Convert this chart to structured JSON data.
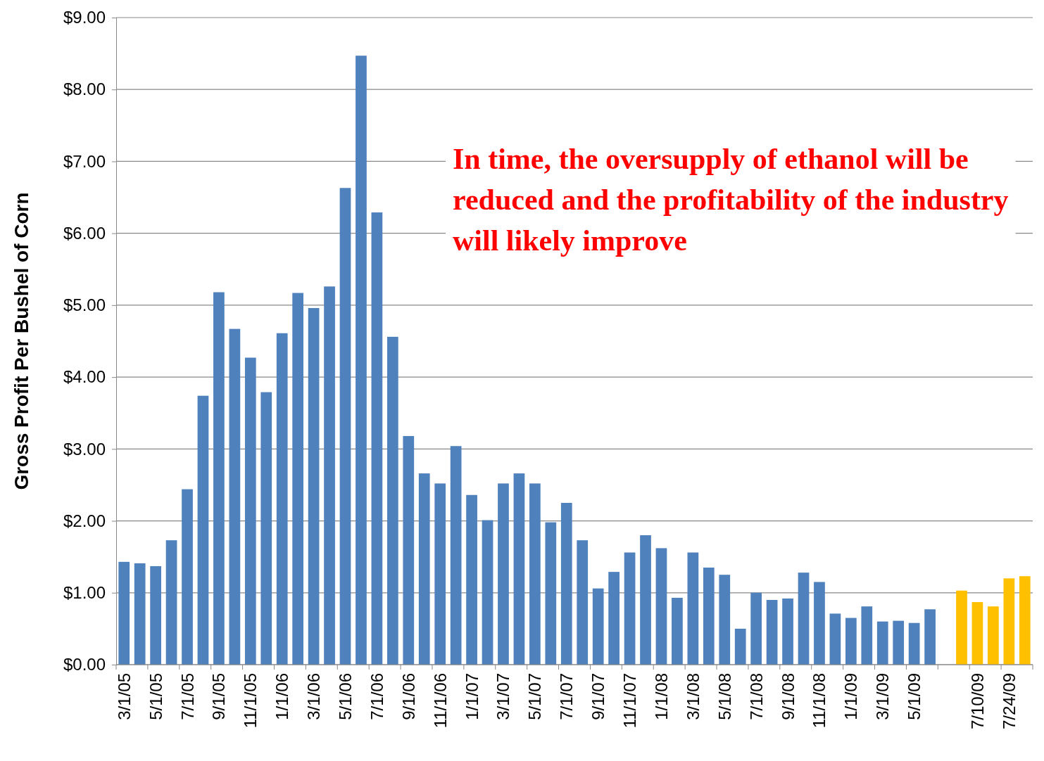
{
  "chart_data": {
    "type": "bar",
    "ylabel": "Gross Profit Per Bushel of Corn",
    "categories": [
      "3/1/05",
      null,
      "5/1/05",
      null,
      "7/1/05",
      null,
      "9/1/05",
      null,
      "11/1/05",
      null,
      "1/1/06",
      null,
      "3/1/06",
      null,
      "5/1/06",
      null,
      "7/1/06",
      null,
      "9/1/06",
      null,
      "11/1/06",
      null,
      "1/1/07",
      null,
      "3/1/07",
      null,
      "5/1/07",
      null,
      "7/1/07",
      null,
      "9/1/07",
      null,
      "11/1/07",
      null,
      "1/1/08",
      null,
      "3/1/08",
      null,
      "5/1/08",
      null,
      "7/1/08",
      null,
      "9/1/08",
      null,
      "11/1/08",
      null,
      "1/1/09",
      null,
      "3/1/09",
      null,
      "5/1/09",
      null,
      null,
      null,
      "7/10/09",
      null,
      "7/24/09",
      null
    ],
    "values": [
      1.43,
      1.41,
      1.37,
      1.73,
      2.44,
      3.74,
      5.18,
      4.67,
      4.27,
      3.79,
      4.61,
      5.17,
      4.96,
      5.26,
      6.63,
      8.47,
      6.29,
      4.56,
      3.18,
      2.66,
      2.52,
      3.04,
      2.36,
      2.01,
      2.52,
      2.66,
      2.52,
      1.98,
      2.25,
      1.73,
      1.06,
      1.29,
      1.56,
      1.8,
      1.62,
      0.93,
      1.56,
      1.35,
      1.25,
      0.5,
      1.0,
      0.9,
      0.92,
      1.28,
      1.15,
      0.71,
      0.65,
      0.81,
      0.6,
      0.61,
      0.58,
      0.77,
      null,
      1.03,
      0.87,
      0.81,
      1.2,
      1.23
    ],
    "colors": [
      "#4f81bd",
      "#4f81bd",
      "#4f81bd",
      "#4f81bd",
      "#4f81bd",
      "#4f81bd",
      "#4f81bd",
      "#4f81bd",
      "#4f81bd",
      "#4f81bd",
      "#4f81bd",
      "#4f81bd",
      "#4f81bd",
      "#4f81bd",
      "#4f81bd",
      "#4f81bd",
      "#4f81bd",
      "#4f81bd",
      "#4f81bd",
      "#4f81bd",
      "#4f81bd",
      "#4f81bd",
      "#4f81bd",
      "#4f81bd",
      "#4f81bd",
      "#4f81bd",
      "#4f81bd",
      "#4f81bd",
      "#4f81bd",
      "#4f81bd",
      "#4f81bd",
      "#4f81bd",
      "#4f81bd",
      "#4f81bd",
      "#4f81bd",
      "#4f81bd",
      "#4f81bd",
      "#4f81bd",
      "#4f81bd",
      "#4f81bd",
      "#4f81bd",
      "#4f81bd",
      "#4f81bd",
      "#4f81bd",
      "#4f81bd",
      "#4f81bd",
      "#4f81bd",
      "#4f81bd",
      "#4f81bd",
      "#4f81bd",
      "#4f81bd",
      "#4f81bd",
      null,
      "#ffc000",
      "#ffc000",
      "#ffc000",
      "#ffc000",
      "#ffc000"
    ],
    "ylim": [
      0,
      9
    ],
    "yticks": [
      {
        "value": 0,
        "label": "$0.00"
      },
      {
        "value": 1,
        "label": "$1.00"
      },
      {
        "value": 2,
        "label": "$2.00"
      },
      {
        "value": 3,
        "label": "$3.00"
      },
      {
        "value": 4,
        "label": "$4.00"
      },
      {
        "value": 5,
        "label": "$5.00"
      },
      {
        "value": 6,
        "label": "$6.00"
      },
      {
        "value": 7,
        "label": "$7.00"
      },
      {
        "value": 8,
        "label": "$8.00"
      },
      {
        "value": 9,
        "label": "$9.00"
      }
    ],
    "grid": "y",
    "annotations": [
      "In time, the oversupply of ethanol will be reduced and the profitability of the industry will likely improve"
    ]
  }
}
